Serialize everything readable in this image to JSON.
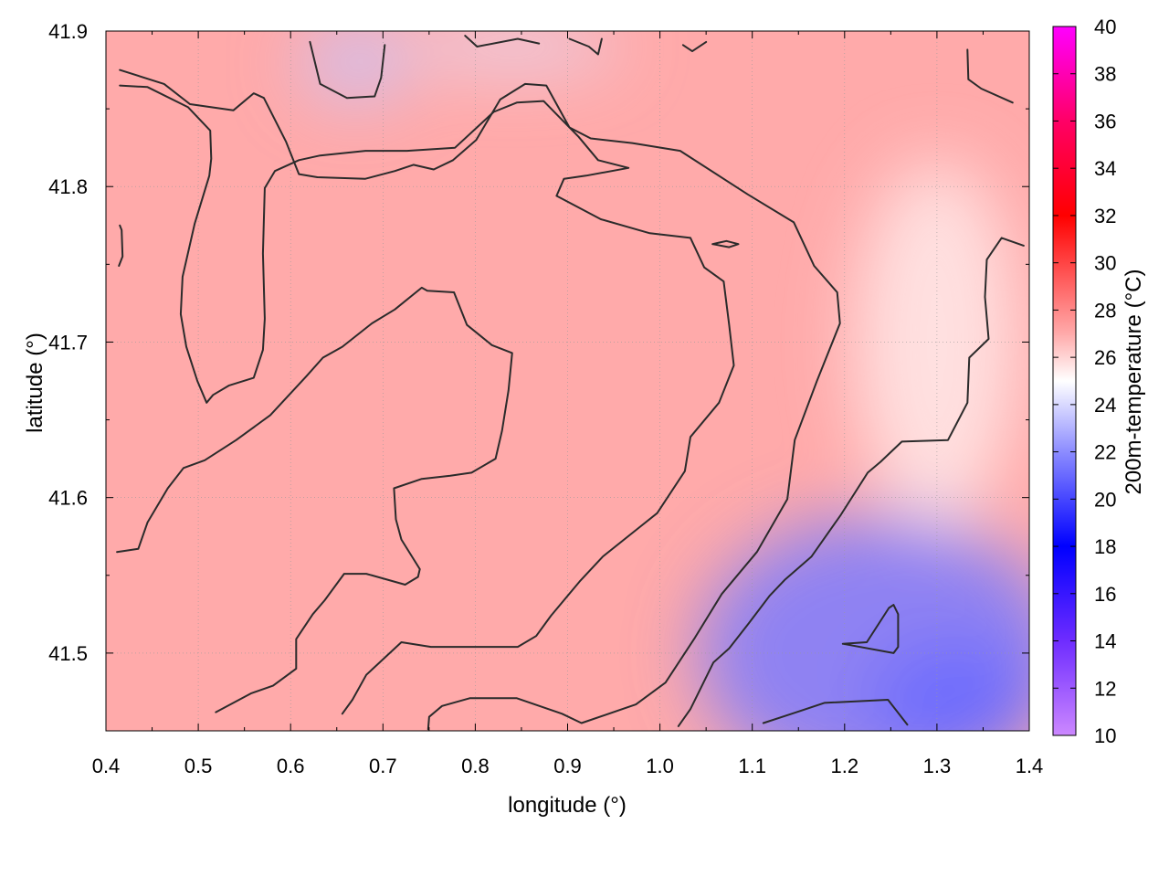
{
  "chart_data": {
    "type": "heatmap",
    "title": "",
    "xlabel": "longitude (°)",
    "ylabel": "latitude (°)",
    "colorbar_label": "200m-temperature (°C)",
    "xlim": [
      0.4,
      1.4
    ],
    "ylim": [
      41.45,
      41.9
    ],
    "x_ticks": [
      "0.4",
      "0.5",
      "0.6",
      "0.7",
      "0.8",
      "0.9",
      "1.0",
      "1.1",
      "1.2",
      "1.3",
      "1.4"
    ],
    "y_ticks": [
      "41.5",
      "41.6",
      "41.7",
      "41.8",
      "41.9"
    ],
    "colorbar_range": [
      10,
      40
    ],
    "colorbar_ticks": [
      "10",
      "12",
      "14",
      "16",
      "18",
      "20",
      "22",
      "24",
      "26",
      "28",
      "30",
      "32",
      "34",
      "36",
      "38",
      "40"
    ],
    "grid": true,
    "colormap": [
      {
        "value": 10,
        "color": "#cc88ff"
      },
      {
        "value": 14,
        "color": "#6e2cff"
      },
      {
        "value": 18,
        "color": "#0000ff"
      },
      {
        "value": 22,
        "color": "#8c8cff"
      },
      {
        "value": 25,
        "color": "#ffffff"
      },
      {
        "value": 27,
        "color": "#ffaaaa"
      },
      {
        "value": 32,
        "color": "#ff0000"
      },
      {
        "value": 36,
        "color": "#ff0066"
      },
      {
        "value": 40,
        "color": "#ff00ff"
      }
    ],
    "field_regions": [
      {
        "name": "warm-interior",
        "center": [
          0.8,
          41.68
        ],
        "value": 27.0
      },
      {
        "name": "cool-northwest",
        "center": [
          0.67,
          41.88
        ],
        "value": 23.5
      },
      {
        "name": "cool-north",
        "center": [
          0.84,
          41.89
        ],
        "value": 24.2
      },
      {
        "name": "cold-southeast",
        "center": [
          1.24,
          41.5
        ],
        "value": 21.5
      },
      {
        "name": "cold-southeast-edge",
        "center": [
          1.32,
          41.47
        ],
        "value": 21.0
      },
      {
        "name": "mild-east",
        "center": [
          1.3,
          41.7
        ],
        "value": 25.5
      }
    ],
    "contours": [
      {
        "name": "contour-northwest",
        "points": [
          [
            0.415,
            41.875
          ],
          [
            0.463,
            41.866
          ],
          [
            0.491,
            41.853
          ],
          [
            0.538,
            41.849
          ],
          [
            0.56,
            41.86
          ],
          [
            0.571,
            41.857
          ],
          [
            0.595,
            41.829
          ],
          [
            0.609,
            41.808
          ],
          [
            0.629,
            41.806
          ],
          [
            0.681,
            41.805
          ],
          [
            0.713,
            41.81
          ],
          [
            0.733,
            41.814
          ],
          [
            0.755,
            41.811
          ],
          [
            0.776,
            41.817
          ],
          [
            0.801,
            41.83
          ],
          [
            0.827,
            41.856
          ],
          [
            0.854,
            41.866
          ],
          [
            0.877,
            41.865
          ],
          [
            0.902,
            41.838
          ],
          [
            0.925,
            41.831
          ],
          [
            0.97,
            41.828
          ],
          [
            1.022,
            41.823
          ],
          [
            1.095,
            41.795
          ],
          [
            1.145,
            41.777
          ],
          [
            1.167,
            41.749
          ],
          [
            1.192,
            41.732
          ],
          [
            1.195,
            41.712
          ],
          [
            1.17,
            41.675
          ],
          [
            1.146,
            41.637
          ],
          [
            1.138,
            41.599
          ],
          [
            1.105,
            41.565
          ],
          [
            1.067,
            41.538
          ],
          [
            1.038,
            41.51
          ],
          [
            1.006,
            41.481
          ],
          [
            0.974,
            41.467
          ],
          [
            0.915,
            41.455
          ],
          [
            0.894,
            41.461
          ],
          [
            0.845,
            41.471
          ],
          [
            0.794,
            41.471
          ],
          [
            0.764,
            41.466
          ],
          [
            0.75,
            41.459
          ],
          [
            0.749,
            41.451
          ]
        ]
      },
      {
        "name": "contour-west",
        "points": [
          [
            0.415,
            41.865
          ],
          [
            0.445,
            41.864
          ],
          [
            0.489,
            41.851
          ],
          [
            0.513,
            41.836
          ],
          [
            0.514,
            41.818
          ],
          [
            0.512,
            41.807
          ],
          [
            0.496,
            41.776
          ],
          [
            0.483,
            41.742
          ],
          [
            0.481,
            41.718
          ],
          [
            0.487,
            41.697
          ],
          [
            0.499,
            41.675
          ],
          [
            0.509,
            41.661
          ],
          [
            0.516,
            41.666
          ],
          [
            0.533,
            41.672
          ],
          [
            0.56,
            41.677
          ],
          [
            0.57,
            41.695
          ],
          [
            0.572,
            41.715
          ],
          [
            0.57,
            41.757
          ],
          [
            0.572,
            41.799
          ],
          [
            0.583,
            41.81
          ],
          [
            0.609,
            41.817
          ],
          [
            0.632,
            41.82
          ],
          [
            0.681,
            41.823
          ],
          [
            0.726,
            41.823
          ],
          [
            0.778,
            41.825
          ],
          [
            0.82,
            41.848
          ],
          [
            0.845,
            41.854
          ],
          [
            0.874,
            41.855
          ],
          [
            0.912,
            41.832
          ],
          [
            0.933,
            41.817
          ],
          [
            0.966,
            41.812
          ],
          [
            0.92,
            41.807
          ],
          [
            0.896,
            41.805
          ],
          [
            0.888,
            41.794
          ],
          [
            0.936,
            41.779
          ],
          [
            0.989,
            41.77
          ],
          [
            1.033,
            41.767
          ],
          [
            1.048,
            41.748
          ],
          [
            1.069,
            41.739
          ],
          [
            1.075,
            41.711
          ],
          [
            1.08,
            41.685
          ],
          [
            1.064,
            41.661
          ],
          [
            1.033,
            41.639
          ],
          [
            1.027,
            41.617
          ],
          [
            0.997,
            41.59
          ],
          [
            0.978,
            41.581
          ],
          [
            0.938,
            41.562
          ],
          [
            0.913,
            41.546
          ],
          [
            0.882,
            41.524
          ],
          [
            0.866,
            41.511
          ],
          [
            0.846,
            41.504
          ],
          [
            0.797,
            41.504
          ],
          [
            0.752,
            41.504
          ],
          [
            0.72,
            41.507
          ],
          [
            0.682,
            41.486
          ],
          [
            0.667,
            41.47
          ],
          [
            0.656,
            41.461
          ]
        ]
      },
      {
        "name": "contour-center",
        "points": [
          [
            0.412,
            41.565
          ],
          [
            0.435,
            41.567
          ],
          [
            0.445,
            41.584
          ],
          [
            0.467,
            41.606
          ],
          [
            0.484,
            41.619
          ],
          [
            0.507,
            41.624
          ],
          [
            0.541,
            41.637
          ],
          [
            0.578,
            41.653
          ],
          [
            0.617,
            41.678
          ],
          [
            0.635,
            41.69
          ],
          [
            0.656,
            41.697
          ],
          [
            0.688,
            41.712
          ],
          [
            0.713,
            41.721
          ],
          [
            0.742,
            41.735
          ],
          [
            0.748,
            41.733
          ],
          [
            0.777,
            41.732
          ],
          [
            0.791,
            41.711
          ],
          [
            0.818,
            41.698
          ],
          [
            0.84,
            41.693
          ],
          [
            0.836,
            41.669
          ],
          [
            0.829,
            41.643
          ],
          [
            0.822,
            41.625
          ],
          [
            0.796,
            41.616
          ],
          [
            0.773,
            41.614
          ],
          [
            0.742,
            41.612
          ],
          [
            0.712,
            41.606
          ],
          [
            0.714,
            41.586
          ],
          [
            0.72,
            41.573
          ],
          [
            0.74,
            41.554
          ],
          [
            0.738,
            41.549
          ],
          [
            0.724,
            41.544
          ],
          [
            0.682,
            41.551
          ],
          [
            0.658,
            41.551
          ],
          [
            0.637,
            41.534
          ],
          [
            0.624,
            41.525
          ],
          [
            0.606,
            41.509
          ],
          [
            0.606,
            41.49
          ],
          [
            0.581,
            41.479
          ],
          [
            0.557,
            41.474
          ],
          [
            0.519,
            41.462
          ]
        ]
      },
      {
        "name": "contour-east",
        "points": [
          [
            1.02,
            41.453
          ],
          [
            1.033,
            41.464
          ],
          [
            1.058,
            41.494
          ],
          [
            1.075,
            41.503
          ],
          [
            1.096,
            41.519
          ],
          [
            1.119,
            41.537
          ],
          [
            1.135,
            41.547
          ],
          [
            1.164,
            41.562
          ],
          [
            1.196,
            41.589
          ],
          [
            1.225,
            41.616
          ],
          [
            1.239,
            41.623
          ],
          [
            1.262,
            41.636
          ],
          [
            1.312,
            41.637
          ],
          [
            1.333,
            41.661
          ],
          [
            1.335,
            41.69
          ],
          [
            1.356,
            41.702
          ],
          [
            1.352,
            41.729
          ],
          [
            1.354,
            41.753
          ],
          [
            1.37,
            41.767
          ],
          [
            1.394,
            41.762
          ]
        ]
      },
      {
        "name": "contour-southeast-loop",
        "points": [
          [
            1.198,
            41.506
          ],
          [
            1.224,
            41.507
          ],
          [
            1.248,
            41.529
          ],
          [
            1.253,
            41.531
          ],
          [
            1.258,
            41.525
          ],
          [
            1.258,
            41.504
          ],
          [
            1.253,
            41.5
          ],
          [
            1.198,
            41.506
          ]
        ]
      },
      {
        "name": "contour-south",
        "points": [
          [
            1.112,
            41.455
          ],
          [
            1.148,
            41.462
          ],
          [
            1.178,
            41.468
          ],
          [
            1.247,
            41.47
          ],
          [
            1.268,
            41.454
          ]
        ]
      },
      {
        "name": "contour-north-small",
        "points": [
          [
            1.057,
            41.763
          ],
          [
            1.072,
            41.765
          ],
          [
            1.085,
            41.763
          ],
          [
            1.075,
            41.761
          ],
          [
            1.057,
            41.763
          ]
        ]
      },
      {
        "name": "contour-northeast",
        "points": [
          [
            1.333,
            41.888
          ],
          [
            1.334,
            41.869
          ],
          [
            1.348,
            41.863
          ],
          [
            1.382,
            41.854
          ]
        ]
      },
      {
        "name": "contour-west-edge",
        "points": [
          [
            0.415,
            41.775
          ],
          [
            0.417,
            41.772
          ],
          [
            0.418,
            41.755
          ],
          [
            0.414,
            41.749
          ]
        ]
      },
      {
        "name": "contour-cold-north-a",
        "points": [
          [
            0.621,
            41.893
          ],
          [
            0.632,
            41.866
          ],
          [
            0.661,
            41.857
          ],
          [
            0.691,
            41.858
          ],
          [
            0.698,
            41.87
          ],
          [
            0.702,
            41.891
          ]
        ]
      },
      {
        "name": "contour-cold-north-b",
        "points": [
          [
            0.789,
            41.897
          ],
          [
            0.802,
            41.89
          ],
          [
            0.846,
            41.895
          ],
          [
            0.869,
            41.892
          ]
        ]
      },
      {
        "name": "contour-cold-north-c",
        "points": [
          [
            0.902,
            41.895
          ],
          [
            0.923,
            41.89
          ],
          [
            0.933,
            41.885
          ],
          [
            0.937,
            41.895
          ]
        ]
      },
      {
        "name": "contour-cold-north-d",
        "points": [
          [
            1.025,
            41.891
          ],
          [
            1.035,
            41.887
          ],
          [
            1.05,
            41.893
          ]
        ]
      }
    ]
  }
}
